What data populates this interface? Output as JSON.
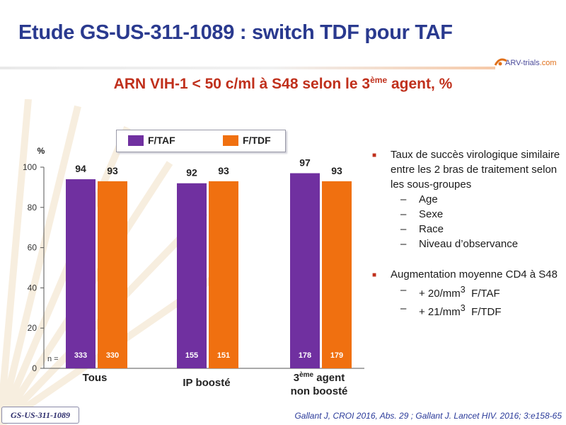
{
  "slide": {
    "title": "Etude GS-US-311-1089 : switch TDF pour TAF",
    "subtitle_main": "ARN VIH-1 < 50 c/ml à S48 selon le 3",
    "subtitle_sup": "ème",
    "subtitle_tail": " agent, %",
    "logo_prefix": "ARV-trials",
    "logo_suffix": ".com",
    "study_badge": "GS-US-311-1089",
    "reference": "Gallant J, CROI 2016, Abs. 29 ; Gallant J. Lancet HIV. 2016; 3:e158-65"
  },
  "chart_data": {
    "type": "bar",
    "ylabel": "%",
    "ylim": [
      0,
      100
    ],
    "yticks": [
      "0",
      "20",
      "40",
      "60",
      "80",
      "100"
    ],
    "n_label": "n =",
    "categories": [
      {
        "line1": "Tous",
        "sup": "",
        "line1_tail": "",
        "line2": ""
      },
      {
        "line1": "IP boosté",
        "sup": "",
        "line1_tail": "",
        "line2": ""
      },
      {
        "line1": "3",
        "sup": "ème",
        "line1_tail": " agent",
        "line2": "non boosté"
      }
    ],
    "series": [
      {
        "name": "F/TAF",
        "color": "#7030a0",
        "values": [
          94,
          92,
          97
        ],
        "n": [
          333,
          155,
          178
        ]
      },
      {
        "name": "F/TDF",
        "color": "#f07010",
        "values": [
          93,
          93,
          93
        ],
        "n": [
          330,
          151,
          179
        ]
      }
    ]
  },
  "bullets": [
    {
      "text": "Taux de succès virologique similaire entre les 2 bras de traitement selon les sous-groupes",
      "subs": [
        {
          "text": "Age",
          "sup": "",
          "tail": ""
        },
        {
          "text": "Sexe",
          "sup": "",
          "tail": ""
        },
        {
          "text": "Race",
          "sup": "",
          "tail": ""
        },
        {
          "text": "Niveau d’observance",
          "sup": "",
          "tail": ""
        }
      ]
    },
    {
      "text": "Augmentation moyenne CD4 à S48",
      "subs": [
        {
          "text": "+ 20/mm",
          "sup": "3",
          "tail": "  F/TAF"
        },
        {
          "text": "+ 21/mm",
          "sup": "3",
          "tail": "  F/TDF"
        }
      ]
    }
  ]
}
